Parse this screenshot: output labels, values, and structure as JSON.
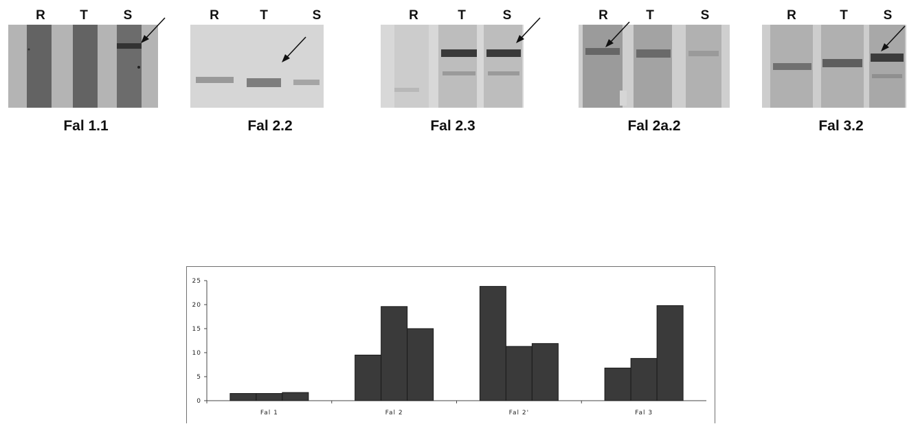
{
  "colors": {
    "bar_fill": "#3a3a3a",
    "gel_background": "#a6a6a6",
    "band_dark": "#4a4a4a"
  },
  "panels": [
    {
      "lanes": [
        "R",
        "T",
        "S"
      ],
      "caption": "Fal 1.1",
      "arrow_lane": "S"
    },
    {
      "lanes": [
        "R",
        "T",
        "S"
      ],
      "caption": "Fal 2.2",
      "arrow_lane": "T"
    },
    {
      "lanes": [
        "R",
        "T",
        "S"
      ],
      "caption": "Fal 2.3",
      "arrow_lane": "S"
    },
    {
      "lanes": [
        "R",
        "T",
        "S"
      ],
      "caption": "Fal 2a.2",
      "arrow_lane": "R"
    },
    {
      "lanes": [
        "R",
        "T",
        "S"
      ],
      "caption": "Fal 3.2",
      "arrow_lane": "S"
    }
  ],
  "chart_data": {
    "type": "bar",
    "title": "",
    "xlabel": "",
    "ylabel": "",
    "categories": [
      "Fal 1",
      "Fal 2",
      "Fal 2'",
      "Fal 3"
    ],
    "series": [
      {
        "values": [
          1.5,
          9.5,
          23.8,
          6.8
        ]
      },
      {
        "values": [
          1.5,
          19.6,
          11.3,
          8.8
        ]
      },
      {
        "values": [
          1.7,
          15.0,
          11.9,
          19.8
        ]
      }
    ],
    "ylim": [
      0,
      25
    ],
    "yticks": [
      0,
      5,
      10,
      15,
      20,
      25
    ],
    "grid": false,
    "legend": "none"
  }
}
